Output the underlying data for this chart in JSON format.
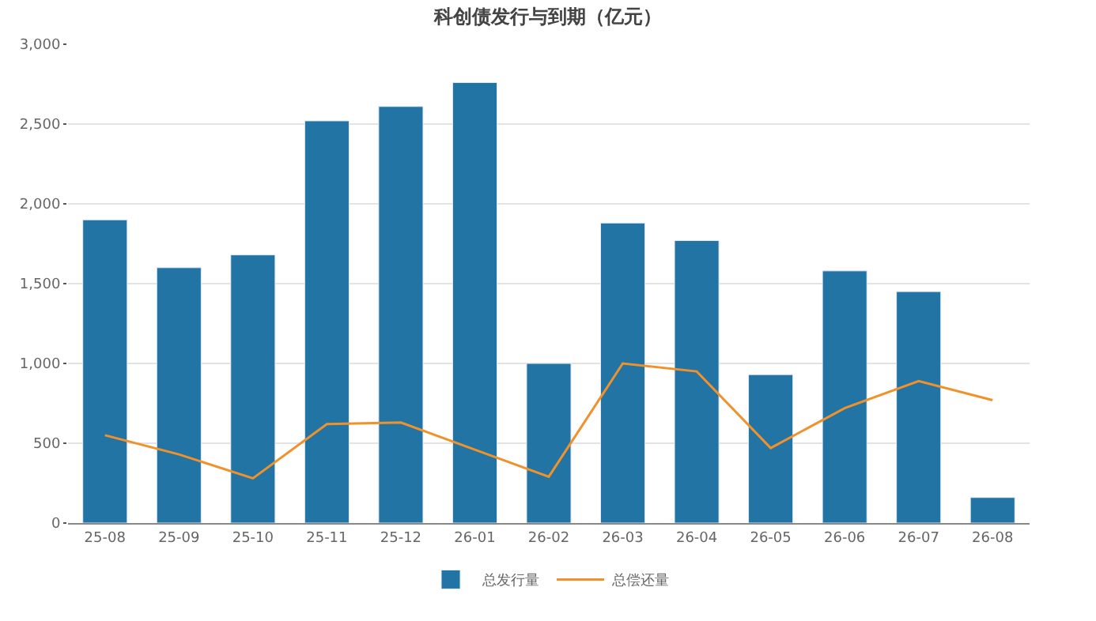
{
  "chart_data": {
    "type": "bar",
    "title": "科创债发行与到期（亿元）",
    "categories": [
      "25-08",
      "25-09",
      "25-10",
      "25-11",
      "25-12",
      "26-01",
      "26-02",
      "26-03",
      "26-04",
      "26-05",
      "26-06",
      "26-07",
      "26-08"
    ],
    "series": [
      {
        "name": "总发行量",
        "color": "#2274a5",
        "values": [
          1900,
          1600,
          1680,
          2520,
          2610,
          2760,
          1000,
          1880,
          1770,
          930,
          1580,
          1450,
          160
        ]
      },
      {
        "name": "总偿还量",
        "type": "line",
        "color": "#f0922b",
        "values": [
          550,
          430,
          280,
          620,
          630,
          460,
          290,
          1000,
          950,
          470,
          720,
          890,
          770
        ]
      }
    ],
    "ylim": [
      0,
      3000
    ],
    "yticks": [
      {
        "value": 0,
        "label": "0"
      },
      {
        "value": 500,
        "label": "500"
      },
      {
        "value": 1000,
        "label": "1,000"
      },
      {
        "value": 1500,
        "label": "1,500"
      },
      {
        "value": 2000,
        "label": "2,000"
      },
      {
        "value": 2500,
        "label": "2,500"
      },
      {
        "value": 3000,
        "label": "3,000"
      }
    ],
    "grid": "y",
    "legend": "bottom",
    "marker": "none"
  }
}
